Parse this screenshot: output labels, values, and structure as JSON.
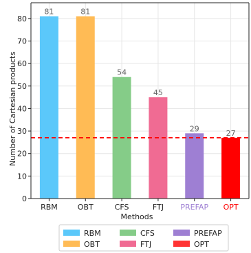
{
  "chart_data": {
    "type": "bar",
    "xlabel": "Methods",
    "ylabel": "Number of Cartesian products",
    "ylim": [
      0,
      87
    ],
    "yticks": [
      0,
      10,
      20,
      30,
      40,
      50,
      60,
      70,
      80
    ],
    "grid": true,
    "categories": [
      "RBM",
      "OBT",
      "CFS",
      "FTJ",
      "PREFAP",
      "OPT"
    ],
    "values": [
      81,
      81,
      54,
      45,
      29,
      27
    ],
    "colors": [
      "#5bc8fa",
      "#ffbb55",
      "#85cc88",
      "#f06b93",
      "#9e7fd3",
      "#ff0000"
    ],
    "tick_label_colors": [
      "#222222",
      "#222222",
      "#222222",
      "#222222",
      "#9e7fd3",
      "#ff0000"
    ],
    "reference_line": {
      "value": 27,
      "color": "#ff0000",
      "style": "dashed"
    },
    "legend": {
      "placement": "bottom-center",
      "entries": [
        {
          "label": "RBM",
          "color": "#5bc8fa"
        },
        {
          "label": "OBT",
          "color": "#ffbb55"
        },
        {
          "label": "CFS",
          "color": "#85cc88"
        },
        {
          "label": "FTJ",
          "color": "#f06b93"
        },
        {
          "label": "PREFAP",
          "color": "#9e7fd3"
        },
        {
          "label": "OPT",
          "color": "#ff3333"
        }
      ]
    }
  }
}
